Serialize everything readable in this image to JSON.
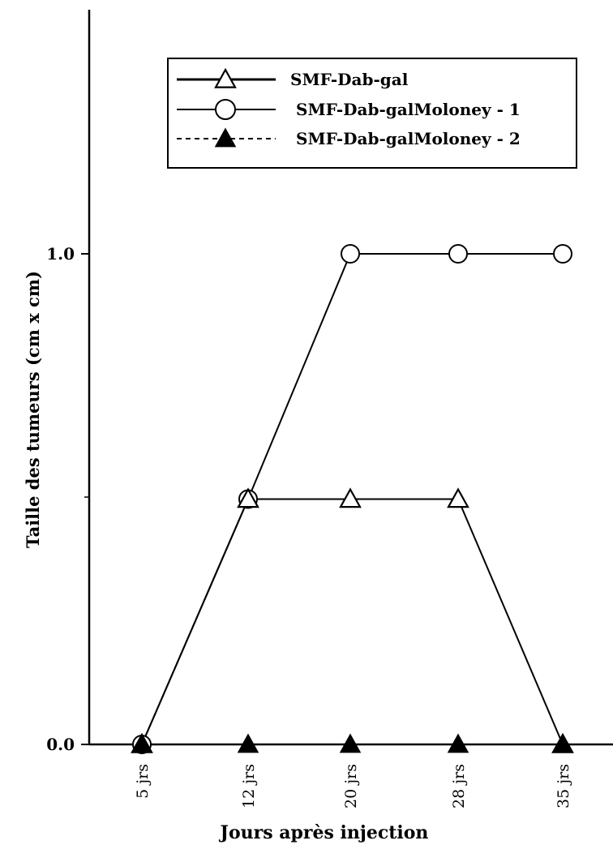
{
  "chart_data": {
    "type": "line",
    "xlabel": "Jours après injection",
    "ylabel": "Taille des tumeurs (cm x cm)",
    "categories": [
      "5 jrs",
      "12 jrs",
      "20 jrs",
      "28 jrs",
      "35 jrs"
    ],
    "y_ticks": [
      {
        "value": 0.0,
        "label": "0.0"
      },
      {
        "value": 1.0,
        "label": "1.0"
      }
    ],
    "ylim": [
      0,
      1.7
    ],
    "grid": false,
    "legend_position": "top-right",
    "series": [
      {
        "name": "SMF-Dab-gal",
        "marker": "open-triangle",
        "line": "solid",
        "values": [
          0,
          0.5,
          0.5,
          0.5,
          0
        ]
      },
      {
        "name": "SMF-Dab-galMoloney - 1",
        "marker": "open-circle",
        "line": "solid",
        "values": [
          0,
          0.5,
          1.0,
          1.0,
          1.0
        ]
      },
      {
        "name": "SMF-Dab-galMoloney - 2",
        "marker": "filled-triangle",
        "line": "dashed",
        "values": [
          0,
          0,
          0,
          0,
          0
        ]
      }
    ]
  }
}
